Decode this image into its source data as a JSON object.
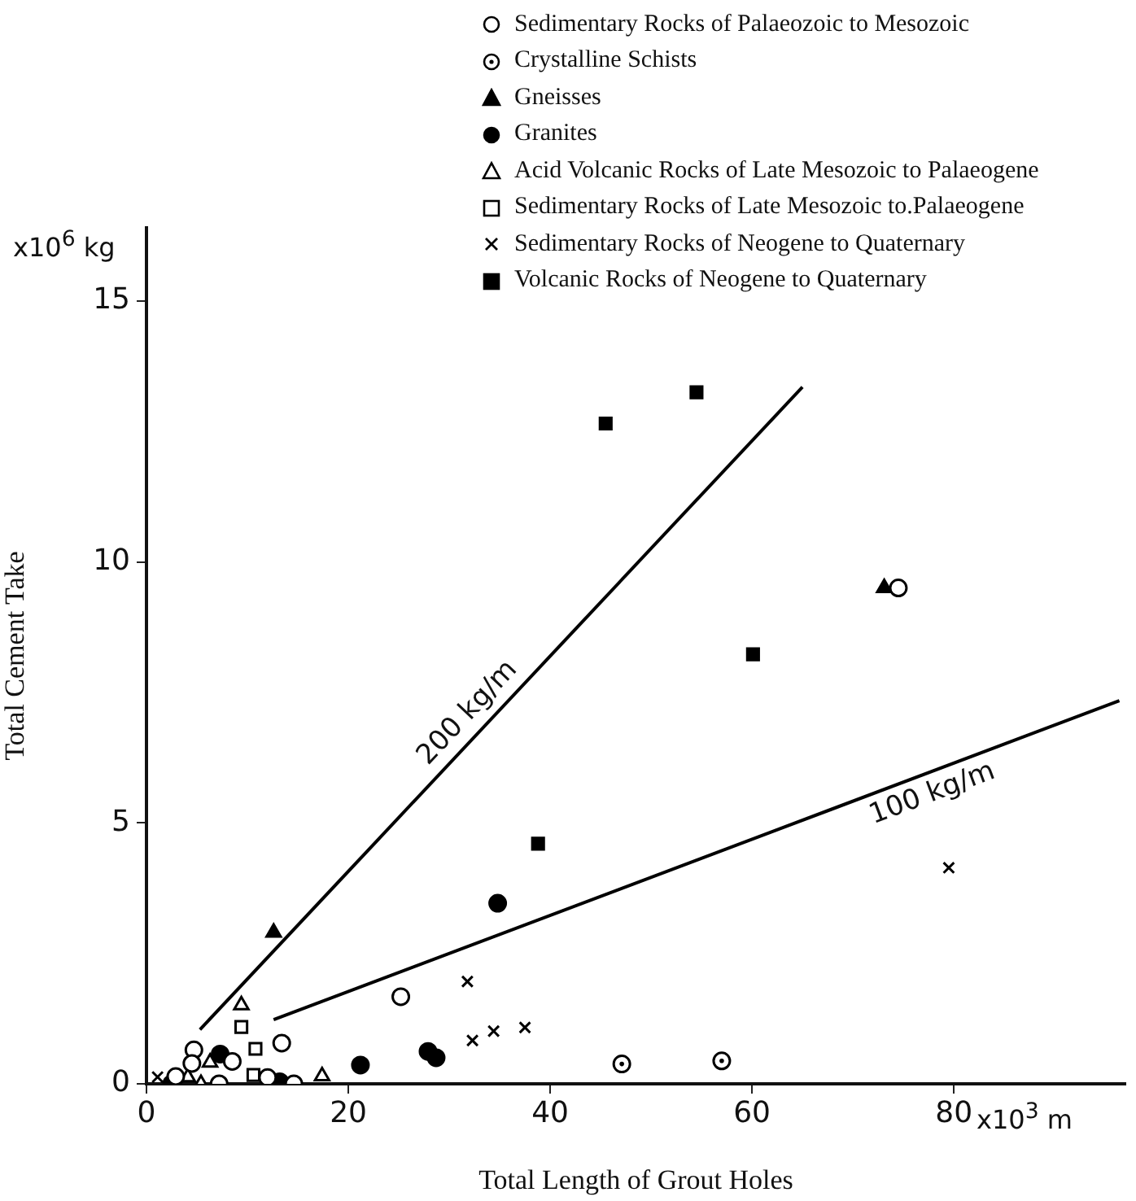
{
  "chart_data": {
    "type": "scatter",
    "xlabel": "Total Length of Grout Holes",
    "ylabel": "Total Cement Take",
    "xlim": [
      0,
      97
    ],
    "ylim": [
      0,
      16.4
    ],
    "xticks": [
      0,
      20,
      40,
      60,
      80
    ],
    "yticks": [
      0,
      5,
      10,
      15
    ],
    "grid": false,
    "legend": "top right",
    "annotations": [
      "x10$^{6}$ kg",
      "x10$^{3}$ m",
      "200 kg/m",
      "100 kg/m"
    ],
    "series": [
      {
        "name": "Sedimentary Rocks of Palaeozoic to Mesozoic",
        "color": "#000000",
        "marker": "circle-open",
        "x": [
          4.7,
          4.5,
          8.5,
          7.2,
          2.9,
          13.4,
          12.0,
          14.6,
          25.2,
          74.5
        ],
        "values": [
          0.65,
          0.39,
          0.43,
          0,
          0.14,
          0.78,
          0.12,
          0,
          1.67,
          9.5
        ]
      },
      {
        "name": "Crystalline Schists",
        "color": "#000000",
        "marker": "circle-dot",
        "x": [
          47.1,
          57.0
        ],
        "values": [
          0.38,
          0.44
        ]
      },
      {
        "name": "Gneisses",
        "color": "#000000",
        "marker": "triangle",
        "x": [
          12.6,
          73.1
        ],
        "values": [
          2.9,
          9.5
        ]
      },
      {
        "name": "Granites",
        "color": "#000000",
        "marker": "circle",
        "x": [
          2.5,
          7.3,
          13.2,
          21.2,
          27.9,
          28.7,
          34.8
        ],
        "values": [
          0,
          0.57,
          0.04,
          0.36,
          0.62,
          0.5,
          3.46
        ]
      },
      {
        "name": "Acid Volcanic Rocks of Late Mesozoic to Palaeogene",
        "color": "#000000",
        "marker": "triangle-open",
        "x": [
          9.4,
          6.3,
          4.1,
          5.4,
          17.4
        ],
        "values": [
          1.51,
          0.41,
          0.13,
          0,
          0.15
        ]
      },
      {
        "name": "Sedimentary Rocks of Late Mesozoic to.Palaeogene",
        "color": "#000000",
        "marker": "square-open",
        "x": [
          9.4,
          10.8,
          10.6
        ],
        "values": [
          1.09,
          0.67,
          0.17
        ]
      },
      {
        "name": "Sedimentary Rocks of Neogene to Quaternary",
        "color": "#000000",
        "marker": "cross",
        "x": [
          1.1,
          31.8,
          32.3,
          34.4,
          37.5,
          79.5
        ],
        "values": [
          0.13,
          1.96,
          0.83,
          1.01,
          1.08,
          4.14
        ]
      },
      {
        "name": "Volcanic Rocks of Neogene to Quaternary",
        "color": "#000000",
        "marker": "square",
        "x": [
          38.8,
          45.5,
          54.5,
          60.1
        ],
        "values": [
          4.6,
          12.65,
          13.25,
          8.23
        ]
      },
      {
        "type": "line",
        "color": "#000000",
        "marker": "none",
        "x": [
          5.3,
          65
        ],
        "values": [
          1.04,
          13.35
        ]
      },
      {
        "type": "line",
        "color": "#000000",
        "marker": "none",
        "x": [
          12.6,
          96.4
        ],
        "values": [
          1.23,
          7.34
        ]
      }
    ]
  }
}
